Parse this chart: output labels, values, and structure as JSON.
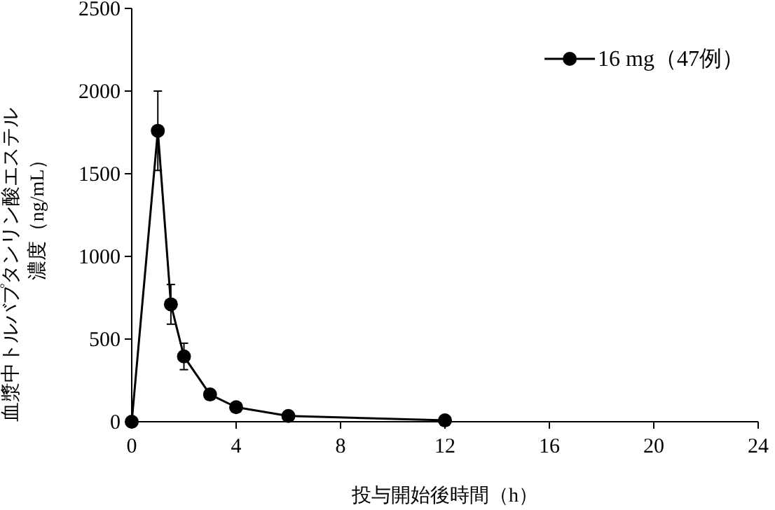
{
  "chart_data": {
    "type": "line",
    "xlabel": "投与開始後時間（h）",
    "ylabel": "血漿中トルバプタンリン酸エステル濃度（ng/mL）",
    "x": [
      0,
      1,
      1.5,
      2,
      3,
      4,
      6,
      12
    ],
    "series": [
      {
        "name": "16 mg（47例）",
        "color": "#000000",
        "values": [
          0,
          1760,
          710,
          395,
          165,
          88,
          35,
          8
        ],
        "errors": [
          null,
          240,
          120,
          80,
          30,
          null,
          null,
          null
        ]
      }
    ],
    "xlim": [
      0,
      24
    ],
    "xticks": [
      0,
      4,
      8,
      12,
      16,
      20,
      24
    ],
    "ylim": [
      0,
      2500
    ],
    "yticks": [
      0,
      500,
      1000,
      1500,
      2000,
      2500
    ],
    "marker": "circle",
    "legend": "top right",
    "grid": false
  }
}
